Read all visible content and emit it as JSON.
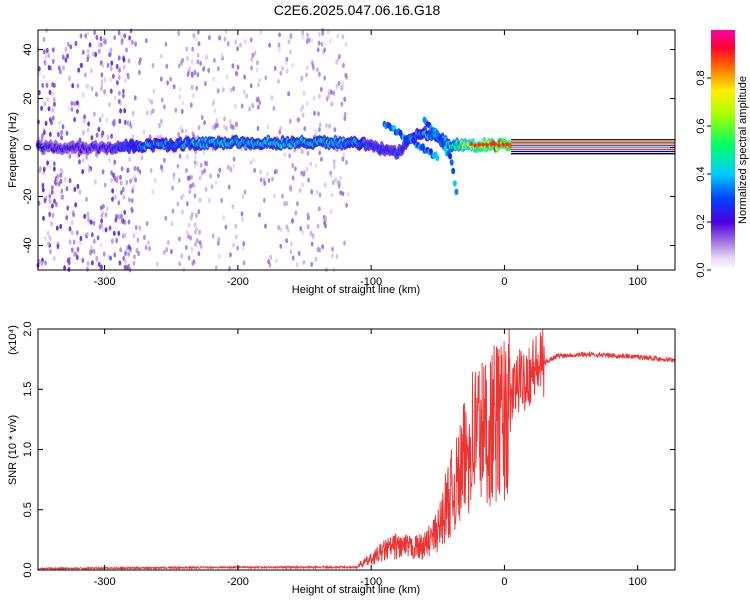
{
  "title": "C2E6.2025.047.06.16.G18",
  "chart_data": [
    {
      "type": "heatmap",
      "xlabel": "Height of straight line (km)",
      "ylabel": "Frequency (Hz)",
      "xlim": [
        -350,
        128
      ],
      "ylim": [
        -50,
        48
      ],
      "xticks": [
        -300,
        -200,
        -100,
        0,
        100
      ],
      "yticks": [
        -40,
        -20,
        0,
        20,
        40
      ],
      "colorbar": {
        "label": "Normalized spectral amplitude",
        "ticks": [
          "0.0",
          "0.2",
          "0.4",
          "0.6",
          "0.8"
        ],
        "tick_values": [
          0.0,
          0.2,
          0.4,
          0.6,
          0.8
        ],
        "range": [
          0,
          1
        ],
        "colormap": "rainbow (white-lavender-purple-blue-cyan-green-yellow-red-magenta)"
      },
      "ridge": {
        "x": [
          -350,
          -330,
          -300,
          -270,
          -250,
          -220,
          -200,
          -180,
          -150,
          -130,
          -110,
          -100,
          -90,
          -80,
          -70,
          -60,
          -50,
          -40,
          -30,
          -20,
          -10,
          0,
          5,
          128
        ],
        "frequency": [
          0,
          0,
          0,
          1,
          1,
          2,
          2,
          2,
          2,
          2,
          2,
          1,
          -1,
          -2,
          4,
          6,
          4,
          1,
          1,
          1,
          1,
          1,
          1,
          1
        ],
        "amplitude": [
          0.25,
          0.25,
          0.25,
          0.4,
          0.4,
          0.45,
          0.45,
          0.45,
          0.45,
          0.45,
          0.4,
          0.3,
          0.3,
          0.3,
          0.35,
          0.4,
          0.45,
          0.55,
          0.7,
          0.85,
          0.9,
          0.95,
          0.95,
          0.95
        ]
      },
      "secondary_tracks": [
        {
          "x": [
            -90,
            -70,
            -50
          ],
          "frequency": [
            10,
            3,
            -4
          ]
        },
        {
          "x": [
            -60,
            -50,
            -40,
            -35
          ],
          "frequency": [
            12,
            5,
            -5,
            -22
          ]
        }
      ]
    },
    {
      "type": "line",
      "xlabel": "Height of straight line (km)",
      "ylabel": "SNR (10 * v/v)",
      "multiplier": "(x10⁴)",
      "xlim": [
        -350,
        128
      ],
      "ylim": [
        0,
        2.0
      ],
      "xticks": [
        -300,
        -200,
        -100,
        0,
        100
      ],
      "yticks": [
        "0.0",
        "0.5",
        "1.0",
        "1.5",
        "2.0"
      ],
      "series": [
        {
          "color": "#ee3333",
          "x": [
            -350,
            -300,
            -250,
            -200,
            -150,
            -110,
            -100,
            -90,
            -80,
            -70,
            -60,
            -50,
            -45,
            -40,
            -35,
            -30,
            -25,
            -20,
            -15,
            -10,
            -5,
            0,
            5,
            10,
            20,
            30,
            40,
            60,
            80,
            100,
            128
          ],
          "y": [
            0.01,
            0.02,
            0.03,
            0.04,
            0.04,
            0.04,
            0.1,
            0.18,
            0.22,
            0.2,
            0.22,
            0.35,
            0.55,
            0.7,
            0.8,
            1.0,
            1.2,
            1.3,
            1.25,
            1.3,
            1.35,
            1.4,
            1.45,
            1.55,
            1.65,
            1.72,
            1.78,
            1.79,
            1.78,
            1.77,
            1.74
          ]
        }
      ]
    }
  ]
}
